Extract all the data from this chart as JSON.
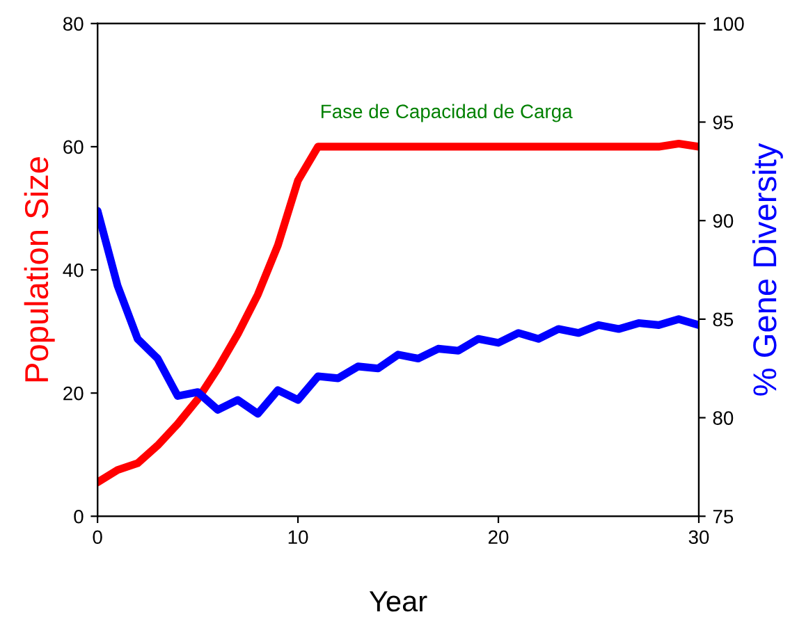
{
  "chart_data": {
    "type": "line",
    "xlabel": "Year",
    "ylabel": "Population Size",
    "y2label": "% Gene Diversity",
    "x": [
      0,
      1,
      2,
      3,
      4,
      5,
      6,
      7,
      8,
      9,
      10,
      11,
      12,
      13,
      14,
      15,
      16,
      17,
      18,
      19,
      20,
      21,
      22,
      23,
      24,
      25,
      26,
      27,
      28,
      29,
      30
    ],
    "series": [
      {
        "color": "#ff0000",
        "values": [
          5.5,
          7.5,
          8.6,
          11.5,
          15,
          19,
          24,
          29.6,
          36,
          44,
          54.5,
          60,
          60,
          60,
          60,
          60,
          60,
          60,
          60,
          60,
          60,
          60,
          60,
          60,
          60,
          60,
          60,
          60,
          60,
          60.5,
          60
        ]
      },
      {
        "color": "#0000ff",
        "axis": "y2",
        "values": [
          90.5,
          86.7,
          84.0,
          83.0,
          81.1,
          81.3,
          80.4,
          80.9,
          80.2,
          81.4,
          80.9,
          82.1,
          82.0,
          82.6,
          82.5,
          83.2,
          83.0,
          83.5,
          83.4,
          84.0,
          83.8,
          84.3,
          84.0,
          84.5,
          84.3,
          84.7,
          84.5,
          84.8,
          84.7,
          85.0,
          84.7
        ]
      }
    ],
    "xlim": [
      0,
      30
    ],
    "xticks": [
      0,
      10,
      20,
      30
    ],
    "ylim": [
      0,
      80
    ],
    "yticks": [
      0,
      20,
      40,
      60,
      80
    ],
    "y2lim": [
      75,
      100
    ],
    "y2ticks": [
      75,
      80,
      85,
      90,
      95,
      100
    ],
    "annotations": [
      "Fase de Capacidad de Carga"
    ],
    "grid": false,
    "legend": false
  }
}
